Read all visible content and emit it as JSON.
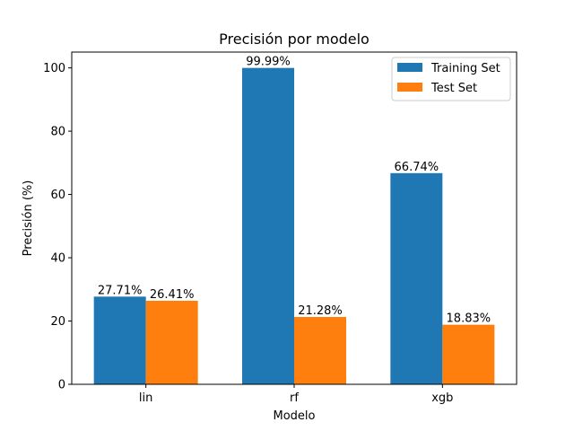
{
  "chart_data": {
    "type": "bar",
    "title": "Precisión por modelo",
    "xlabel": "Modelo",
    "ylabel": "Precisión (%)",
    "categories": [
      "lin",
      "rf",
      "xgb"
    ],
    "ylim": [
      0,
      105
    ],
    "yticks": [
      0,
      20,
      40,
      60,
      80,
      100
    ],
    "grid": false,
    "legend_position": "top-right",
    "series": [
      {
        "name": "Training Set",
        "color": "#1f77b4",
        "values": [
          27.71,
          99.99,
          66.74
        ],
        "labels": [
          "27.71%",
          "99.99%",
          "66.74%"
        ]
      },
      {
        "name": "Test Set",
        "color": "#ff7f0e",
        "values": [
          26.41,
          21.28,
          18.83
        ],
        "labels": [
          "26.41%",
          "21.28%",
          "18.83%"
        ]
      }
    ]
  }
}
